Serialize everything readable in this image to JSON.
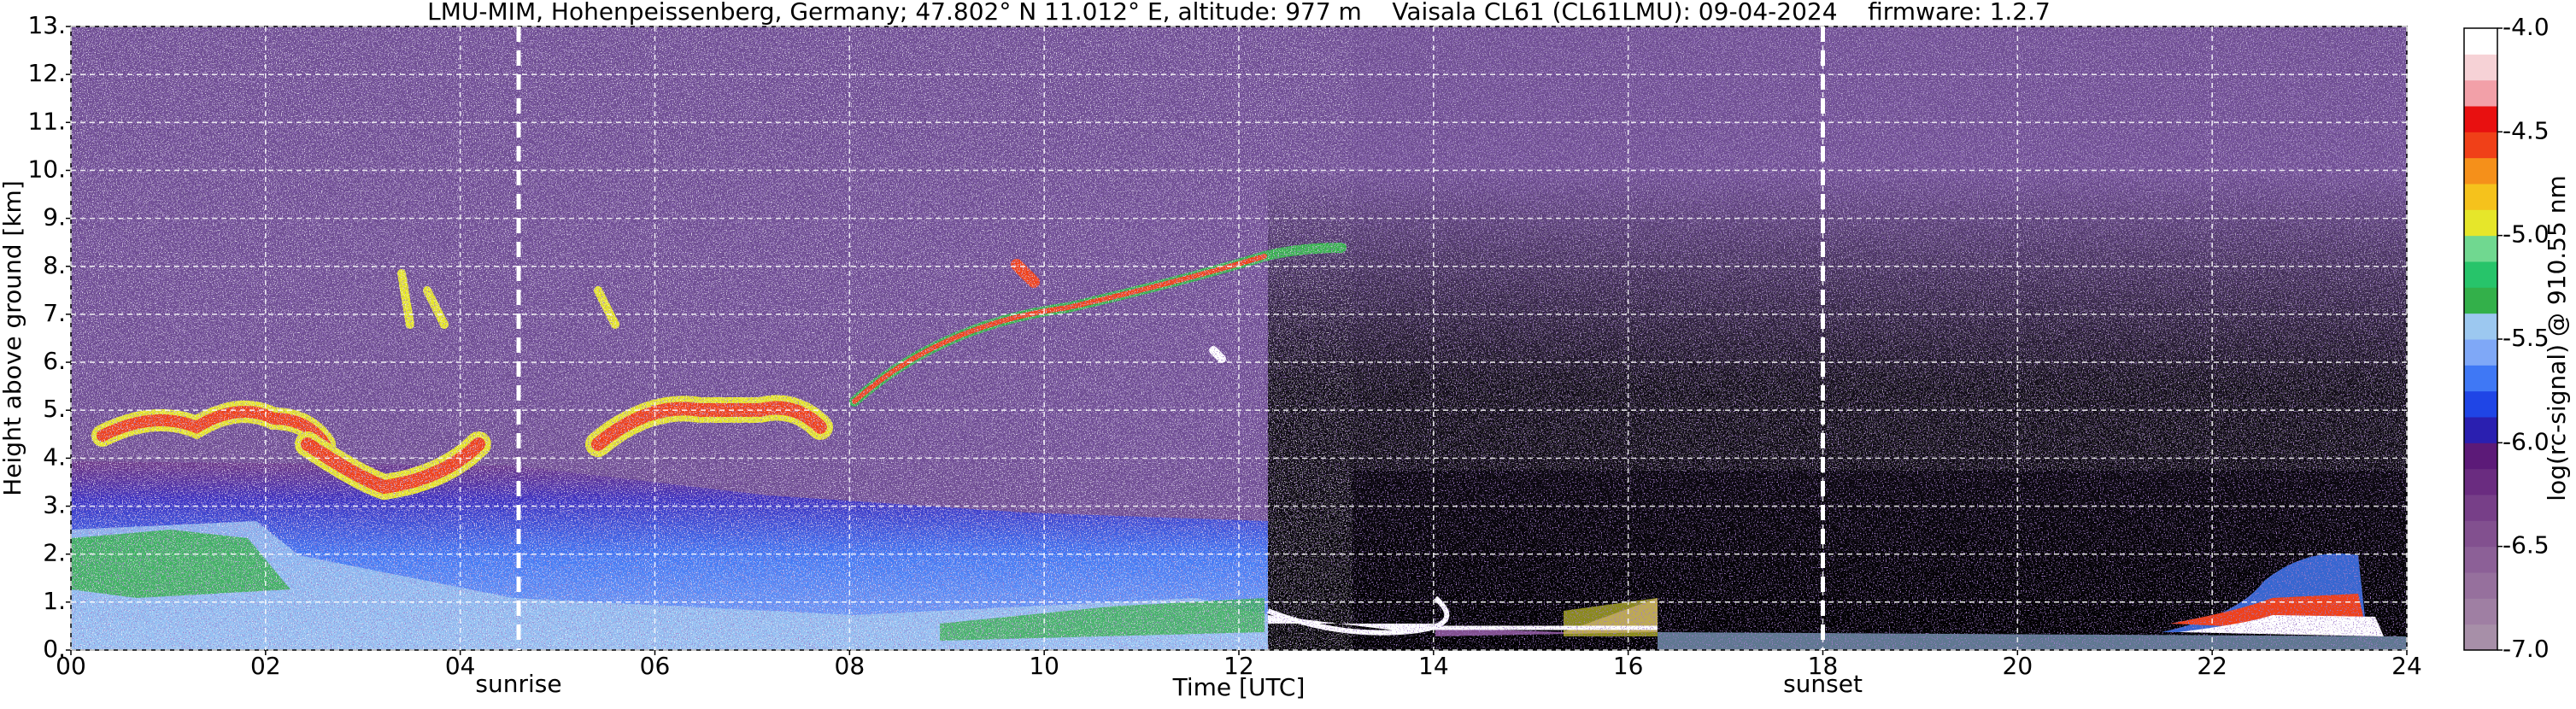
{
  "chart_data": {
    "type": "heatmap",
    "title": "LMU-MIM, Hohenpeissenberg, Germany; 47.802° N 11.012° E, altitude: 977 m    Vaisala CL61 (CL61LMU): 09-04-2024    firmware: 1.2.7",
    "x_label": "Time [UTC]",
    "y_label": "Height above ground [km]",
    "xlim": [
      0,
      24
    ],
    "xticks": [
      {
        "value": 0,
        "label": "00"
      },
      {
        "value": 2,
        "label": "02"
      },
      {
        "value": 4,
        "label": "04"
      },
      {
        "value": 6,
        "label": "06"
      },
      {
        "value": 8,
        "label": "08"
      },
      {
        "value": 10,
        "label": "10"
      },
      12,
      14,
      16,
      18,
      20,
      22,
      24
    ],
    "ylim": [
      0,
      13
    ],
    "yticks": [
      {
        "value": 0,
        "label": "0."
      },
      {
        "value": 1,
        "label": "1."
      },
      {
        "value": 2,
        "label": "2."
      },
      {
        "value": 3,
        "label": "3."
      },
      {
        "value": 4,
        "label": "4."
      },
      {
        "value": 5,
        "label": "5."
      },
      {
        "value": 6,
        "label": "6."
      },
      {
        "value": 7,
        "label": "7."
      },
      {
        "value": 8,
        "label": "8."
      },
      {
        "value": 9,
        "label": "9."
      },
      {
        "value": 10,
        "label": "10."
      },
      {
        "value": 11,
        "label": "11."
      },
      {
        "value": 12,
        "label": "12."
      },
      {
        "value": 13,
        "label": "13."
      }
    ],
    "grid": true,
    "events": [
      {
        "label": "sunrise",
        "x": 4.6
      },
      {
        "label": "sunset",
        "x": 18.0
      }
    ],
    "colorbar": {
      "label": "log(rc-signal) @ 910.55 nm",
      "lim": [
        -7,
        -4
      ],
      "ticks": [
        {
          "value": -4,
          "label": "-4.0"
        },
        -4.5,
        {
          "value": -5,
          "label": "-5.0"
        },
        -5.5,
        {
          "value": -6,
          "label": "-6.0"
        },
        -6.5,
        {
          "value": -7,
          "label": "-7.0"
        }
      ],
      "colors": [
        "#a78fa8",
        "#9f7fa3",
        "#96709d",
        "#8c6097",
        "#82508f",
        "#773f88",
        "#6a2c80",
        "#5c1a78",
        "#2a1fb0",
        "#1f45e6",
        "#3f78f5",
        "#7fa8f7",
        "#9cc8f0",
        "#33b04a",
        "#27c46a",
        "#70d890",
        "#e6e62a",
        "#f5c21c",
        "#f5901a",
        "#f04018",
        "#e81010",
        "#f2a0a8",
        "#f6d2d6",
        "#ffffff"
      ]
    }
  }
}
